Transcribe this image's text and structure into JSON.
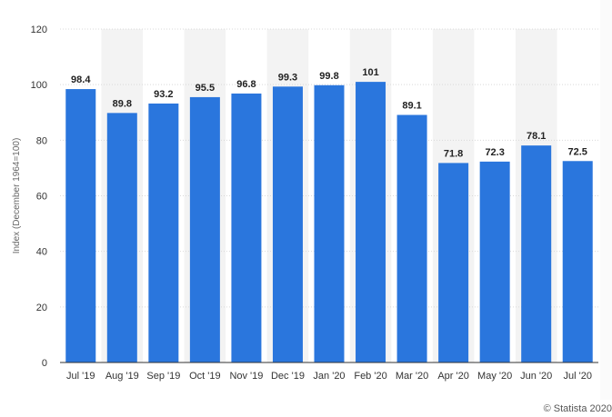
{
  "chart_data": {
    "type": "bar",
    "categories": [
      "Jul '19",
      "Aug '19",
      "Sep '19",
      "Oct '19",
      "Nov '19",
      "Dec '19",
      "Jan '20",
      "Feb '20",
      "Mar '20",
      "Apr '20",
      "May '20",
      "Jun '20",
      "Jul '20"
    ],
    "values": [
      98.4,
      89.8,
      93.2,
      95.5,
      96.8,
      99.3,
      99.8,
      101,
      89.1,
      71.8,
      72.3,
      78.1,
      72.5
    ],
    "value_labels": [
      "98.4",
      "89.8",
      "93.2",
      "95.5",
      "96.8",
      "99.3",
      "99.8",
      "101",
      "89.1",
      "71.8",
      "72.3",
      "78.1",
      "72.5"
    ],
    "ylabel": "Index (December 1964=100)",
    "ylim": [
      0,
      120
    ],
    "yticks": [
      0,
      20,
      40,
      60,
      80,
      100,
      120
    ],
    "grid": true,
    "bar_color": "#2a76dd"
  },
  "credit": "© Statista 2020"
}
